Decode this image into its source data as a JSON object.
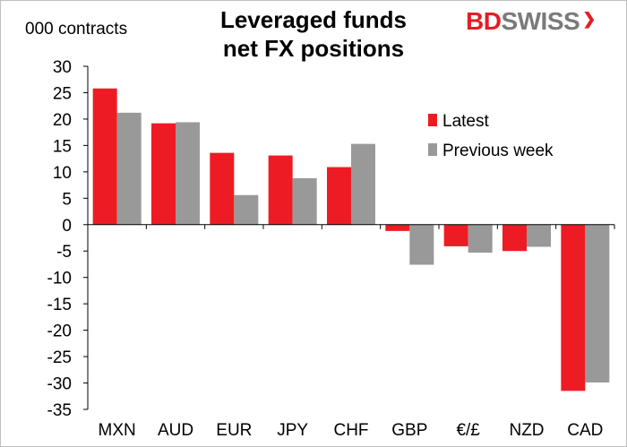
{
  "brand": {
    "bd": "BD",
    "swiss": "SWISS",
    "mark": "❯"
  },
  "chart_data": {
    "type": "bar",
    "title_line1": "Leveraged funds",
    "title_line2": "net FX positions",
    "ylabel": "000 contracts",
    "xlabel": "",
    "categories": [
      "MXN",
      "AUD",
      "EUR",
      "JPY",
      "CHF",
      "GBP",
      "€/£",
      "NZD",
      "CAD"
    ],
    "series": [
      {
        "name": "Latest",
        "color": "#ed1c24",
        "values": [
          25.8,
          19.2,
          13.6,
          13.1,
          10.9,
          -1.2,
          -4.1,
          -5.0,
          -31.5
        ]
      },
      {
        "name": "Previous week",
        "color": "#999999",
        "values": [
          21.2,
          19.4,
          5.6,
          8.8,
          15.3,
          -7.6,
          -5.3,
          -4.2,
          -29.9
        ]
      }
    ],
    "ylim": [
      -35,
      30
    ],
    "yticks": [
      30,
      25,
      20,
      15,
      10,
      5,
      0,
      -5,
      -10,
      -15,
      -20,
      -25,
      -30,
      -35
    ],
    "legend_position": "right",
    "grid": false
  }
}
